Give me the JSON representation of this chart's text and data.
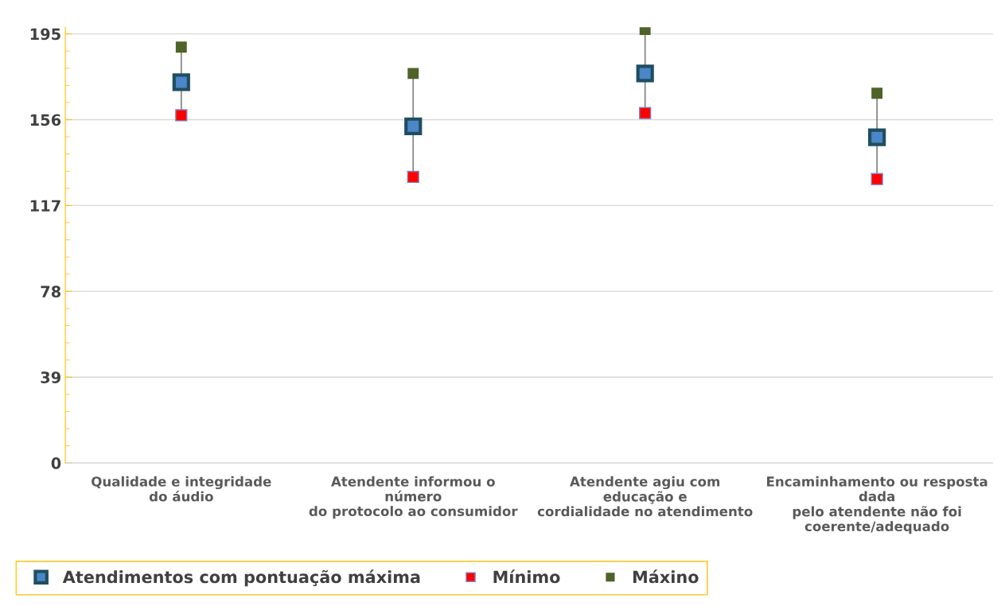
{
  "chart_data": {
    "type": "scatter",
    "categories": [
      "Qualidade e integridade\ndo áudio",
      "Atendente informou o\nnúmero\ndo protocolo ao consumidor",
      "Atendente agiu com\neducação e\ncordialidade no atendimento",
      "Encaminhamento ou resposta\ndada\npelo atendente não foi\ncoerente/adequado"
    ],
    "series": [
      {
        "name": "Atendimentos com pontuação máxima",
        "color": "#4a86c8",
        "values": [
          173,
          153,
          177,
          148
        ]
      },
      {
        "name": "Mínimo",
        "color": "#ff0000",
        "values": [
          158,
          130,
          159,
          129
        ]
      },
      {
        "name": "Máxino",
        "color": "#4f6228",
        "values": [
          189,
          177,
          197,
          168
        ]
      }
    ],
    "ylim": [
      0,
      198
    ],
    "yticks": [
      0,
      39,
      78,
      117,
      156,
      195
    ],
    "grid": "y",
    "legend": "bottom",
    "marker": "square"
  }
}
